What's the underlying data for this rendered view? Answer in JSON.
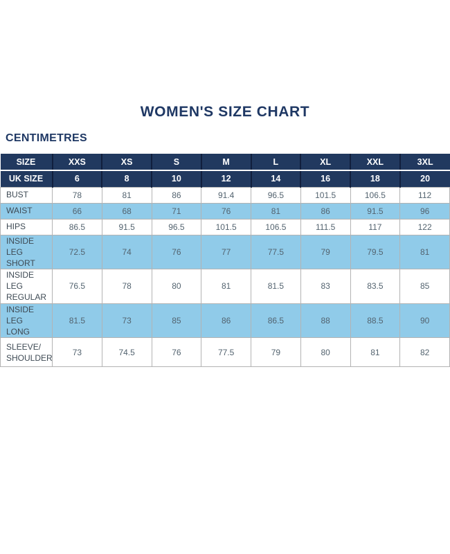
{
  "chart_data": {
    "type": "table",
    "title": "WOMEN'S SIZE CHART",
    "units_label": "CENTIMETRES",
    "header_rows": [
      {
        "label": "SIZE",
        "values": [
          "XXS",
          "XS",
          "S",
          "M",
          "L",
          "XL",
          "XXL",
          "3XL"
        ]
      },
      {
        "label": "UK SIZE",
        "values": [
          "6",
          "8",
          "10",
          "12",
          "14",
          "16",
          "18",
          "20"
        ]
      }
    ],
    "body_rows": [
      {
        "label": "BUST",
        "values": [
          "78",
          "81",
          "86",
          "91.4",
          "96.5",
          "101.5",
          "106.5",
          "112"
        ]
      },
      {
        "label": "WAIST",
        "values": [
          "66",
          "68",
          "71",
          "76",
          "81",
          "86",
          "91.5",
          "96"
        ]
      },
      {
        "label": "HIPS",
        "values": [
          "86.5",
          "91.5",
          "96.5",
          "101.5",
          "106.5",
          "111.5",
          "117",
          "122"
        ]
      },
      {
        "label": "INSIDE LEG\nSHORT",
        "values": [
          "72.5",
          "74",
          "76",
          "77",
          "77.5",
          "79",
          "79.5",
          "81"
        ]
      },
      {
        "label": "INSIDE LEG\nREGULAR",
        "values": [
          "76.5",
          "78",
          "80",
          "81",
          "81.5",
          "83",
          "83.5",
          "85"
        ]
      },
      {
        "label": "INSIDE LEG\nLONG",
        "values": [
          "81.5",
          "73",
          "85",
          "86",
          "86.5",
          "88",
          "88.5",
          "90"
        ]
      },
      {
        "label": "SLEEVE/\nSHOULDER",
        "values": [
          "73",
          "74.5",
          "76",
          "77.5",
          "79",
          "80",
          "81",
          "82"
        ]
      }
    ]
  },
  "colors": {
    "navy": "#21395f",
    "light_blue": "#90cbe9",
    "title_text": "#1f3864",
    "body_text": "#53636f",
    "label_text": "#3e4a54",
    "border_gray": "#b3b3b3",
    "header_divider": "#111f3d"
  }
}
